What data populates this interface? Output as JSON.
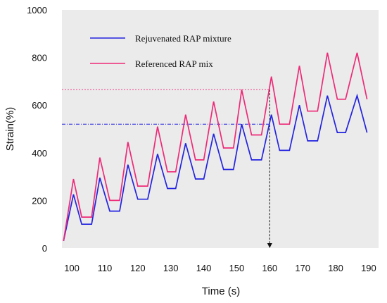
{
  "chart_data": {
    "type": "line",
    "title": "",
    "xlabel": "Time (s)",
    "ylabel": "Strain(%)",
    "xlim": [
      97,
      193
    ],
    "ylim": [
      0,
      1000
    ],
    "xticks": [
      "100",
      "110",
      "120",
      "130",
      "140",
      "150",
      "160",
      "170",
      "180",
      "190"
    ],
    "yticks": [
      "0",
      "200",
      "400",
      "600",
      "800",
      "1000"
    ],
    "grid": false,
    "plot_background": "#ebebeb",
    "legend": "top-left",
    "series": [
      {
        "name": "Rejuvenated RAP mixture",
        "color": "#2323e0",
        "x": [
          97.5,
          100.5,
          103,
          106,
          108.5,
          111.5,
          114.5,
          117,
          120,
          123,
          126,
          129,
          131.5,
          134.5,
          137.5,
          140,
          143,
          146,
          149,
          151.5,
          154.5,
          157.5,
          160.5,
          163,
          166,
          169,
          171.5,
          174.5,
          177.5,
          180.5,
          183,
          186.5,
          189.5
        ],
        "y": [
          30,
          225,
          100,
          100,
          295,
          155,
          155,
          350,
          205,
          205,
          395,
          250,
          250,
          440,
          290,
          290,
          480,
          330,
          330,
          520,
          370,
          370,
          560,
          410,
          410,
          600,
          450,
          450,
          640,
          485,
          485,
          640,
          485
        ]
      },
      {
        "name": "Referenced RAP mix",
        "color": "#ee2a78",
        "x": [
          97.5,
          100.5,
          103,
          106,
          108.5,
          111.5,
          114.5,
          117,
          120,
          123,
          126,
          129,
          131.5,
          134.5,
          137.5,
          140,
          143,
          146,
          149,
          151.5,
          154.5,
          157.5,
          160.5,
          163,
          166,
          169,
          171.5,
          174.5,
          177.5,
          180.5,
          183,
          186.5,
          189.5
        ],
        "y": [
          30,
          290,
          130,
          130,
          380,
          200,
          200,
          445,
          260,
          260,
          510,
          320,
          320,
          560,
          370,
          370,
          615,
          420,
          420,
          665,
          475,
          475,
          720,
          520,
          520,
          765,
          575,
          575,
          820,
          625,
          625,
          820,
          625
        ]
      }
    ],
    "annotations": {
      "marker_x": 160,
      "marker_pink_y": 665,
      "marker_blue_y": 520
    }
  }
}
